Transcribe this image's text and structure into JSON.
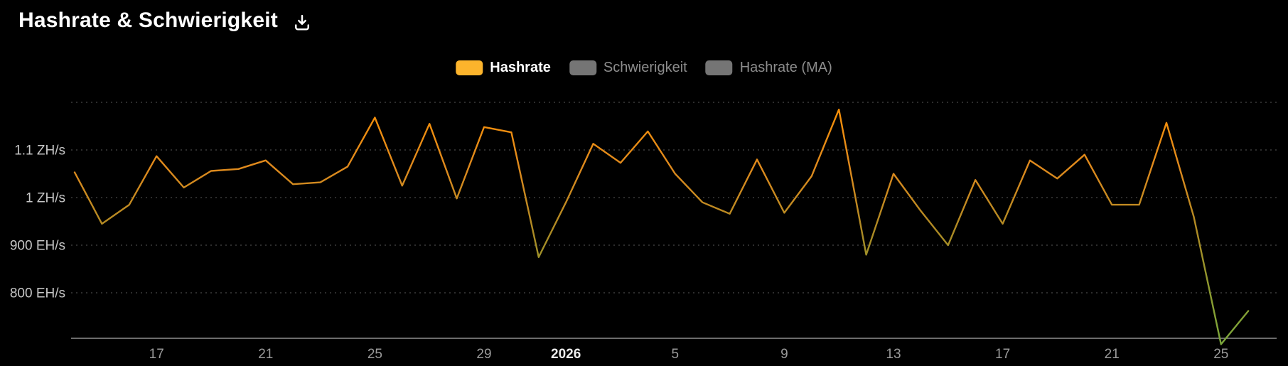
{
  "header": {
    "title": "Hashrate & Schwierigkeit"
  },
  "legend": {
    "items": [
      {
        "label": "Hashrate",
        "swatch_color": "#fcb42c",
        "text_color": "#ffffff",
        "active": true
      },
      {
        "label": "Schwierigkeit",
        "swatch_color": "#757575",
        "text_color": "#8c8c8c",
        "active": false
      },
      {
        "label": "Hashrate (MA)",
        "swatch_color": "#757575",
        "text_color": "#8c8c8c",
        "active": false
      }
    ]
  },
  "chart_data": {
    "type": "line",
    "title": "Hashrate & Schwierigkeit",
    "series": [
      {
        "name": "Hashrate",
        "unit": "EH/s",
        "values": [
          1053,
          945,
          985,
          1087,
          1021,
          1056,
          1060,
          1078,
          1028,
          1032,
          1065,
          1168,
          1025,
          1155,
          998,
          1148,
          1137,
          875,
          990,
          1113,
          1073,
          1139,
          1050,
          990,
          966,
          1080,
          968,
          1045,
          1185,
          880,
          1050,
          972,
          900,
          1037,
          945,
          1078,
          1040,
          1090,
          985,
          985,
          1157,
          960,
          692,
          762
        ]
      }
    ],
    "x_ticks": [
      {
        "index": 3,
        "label": "17",
        "bold": false
      },
      {
        "index": 7,
        "label": "21",
        "bold": false
      },
      {
        "index": 11,
        "label": "25",
        "bold": false
      },
      {
        "index": 15,
        "label": "29",
        "bold": false
      },
      {
        "index": 18,
        "label": "2026",
        "bold": true
      },
      {
        "index": 22,
        "label": "5",
        "bold": false
      },
      {
        "index": 26,
        "label": "9",
        "bold": false
      },
      {
        "index": 30,
        "label": "13",
        "bold": false
      },
      {
        "index": 34,
        "label": "17",
        "bold": false
      },
      {
        "index": 38,
        "label": "21",
        "bold": false
      },
      {
        "index": 42,
        "label": "25",
        "bold": false
      }
    ],
    "y_ticks": [
      {
        "value": 1100,
        "label": "1.1 ZH/s"
      },
      {
        "value": 1000,
        "label": "1 ZH/s"
      },
      {
        "value": 900,
        "label": "900 EH/s"
      },
      {
        "value": 800,
        "label": "800 EH/s"
      }
    ],
    "y_gridlines": [
      1200,
      1100,
      1000,
      900,
      800
    ],
    "ylim": [
      690,
      1210
    ],
    "xlabel": "",
    "ylabel": "",
    "grid": "dotted-horizontal",
    "legend_position": "top-center",
    "line_gradient": [
      {
        "offset": 0,
        "color": "#ff9100"
      },
      {
        "offset": 0.3,
        "color": "#e08a1d"
      },
      {
        "offset": 0.55,
        "color": "#ad8a24"
      },
      {
        "offset": 0.78,
        "color": "#8c9a30"
      },
      {
        "offset": 1,
        "color": "#7ba83c"
      }
    ],
    "axis_color": "#909090",
    "gridline_color": "#3c3c3c",
    "x_tick_label_color": "#9a9a9a",
    "x_tick_bold_color": "#ececec",
    "y_tick_label_color": "#c6c6c6"
  }
}
